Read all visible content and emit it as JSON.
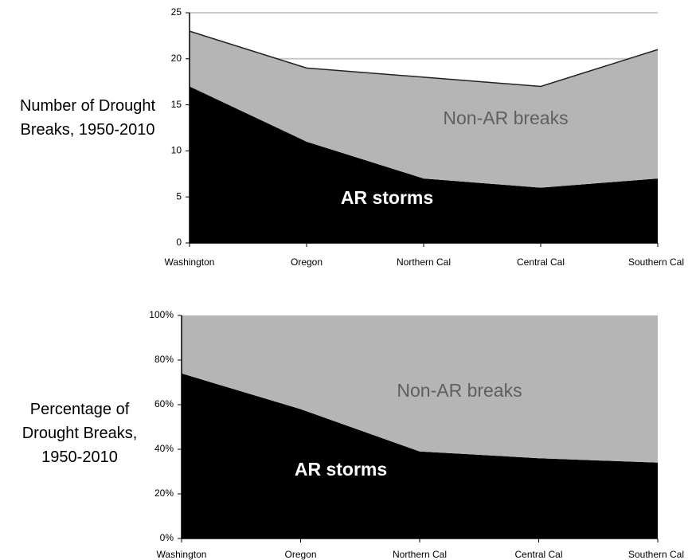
{
  "chart_data": [
    {
      "type": "area",
      "y_label": "Number of Drought Breaks, 1950-2010",
      "categories": [
        "Washington",
        "Oregon",
        "Northern Cal",
        "Central Cal",
        "Southern Cal"
      ],
      "series": [
        {
          "name": "AR storms",
          "color": "#000000",
          "values": [
            17,
            11,
            7,
            6,
            7
          ]
        },
        {
          "name": "Non-AR breaks",
          "color": "#b5b5b5",
          "values": [
            6,
            8,
            11,
            11,
            14
          ]
        }
      ],
      "ylim": [
        0,
        25
      ],
      "yticks": [
        0,
        5,
        10,
        15,
        20,
        25
      ],
      "grid": true
    },
    {
      "type": "area",
      "y_label": "Percentage of Drought Breaks, 1950-2010",
      "categories": [
        "Washington",
        "Oregon",
        "Northern Cal",
        "Central Cal",
        "Southern Cal"
      ],
      "series": [
        {
          "name": "AR storms",
          "color": "#000000",
          "values": [
            74,
            58,
            39,
            36,
            34
          ]
        },
        {
          "name": "Non-AR breaks",
          "color": "#b5b5b5",
          "values": [
            26,
            42,
            61,
            64,
            66
          ]
        }
      ],
      "ylim": [
        0,
        100
      ],
      "yticks": [
        {
          "value": 0,
          "label": "0%"
        },
        {
          "value": 20,
          "label": "20%"
        },
        {
          "value": 40,
          "label": "40%"
        },
        {
          "value": 60,
          "label": "60%"
        },
        {
          "value": 80,
          "label": "80%"
        },
        {
          "value": 100,
          "label": "100%"
        }
      ],
      "grid": false
    }
  ]
}
